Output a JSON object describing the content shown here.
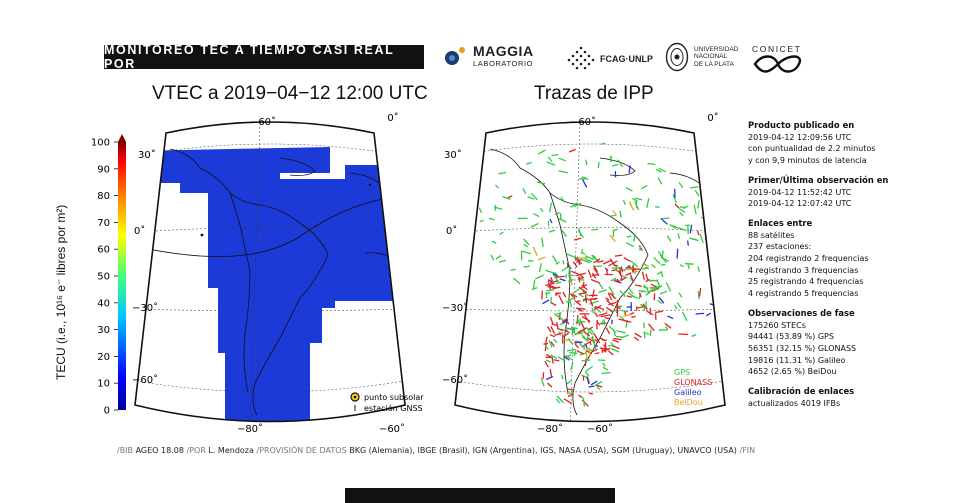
{
  "header": {
    "banner": "MONITOREO TEC A TIEMPO CASI REAL POR",
    "logos": {
      "maggia_line1": "MAGGIA",
      "maggia_line2": "LABORATORIO",
      "fcag": "FCAG·UNLP",
      "unlp_line1": "UNIVERSIDAD",
      "unlp_line2": "NACIONAL",
      "unlp_line3": "DE LA PLATA",
      "conicet": "CONICET"
    }
  },
  "left_map": {
    "title": "VTEC a 2019−04−12 12:00 UTC",
    "lon_ticks_top": [
      "−60˚",
      "0˚"
    ],
    "lon_ticks_bottom": [
      "−80˚",
      "−60˚"
    ],
    "lat_ticks": [
      "30˚",
      "0˚",
      "−30˚",
      "−60˚"
    ],
    "legend": {
      "subsolar": "punto subsolar",
      "station": "estación GNSS"
    },
    "fill_color": "#1c3ad8"
  },
  "colorbar": {
    "ticks": [
      "100",
      "90",
      "80",
      "70",
      "60",
      "50",
      "40",
      "30",
      "20",
      "10",
      "0"
    ],
    "label": "TECU (i.e., 10¹⁶ e⁻ libres por m²)"
  },
  "right_map": {
    "title": "Trazas de IPP",
    "lon_ticks_top": [
      "−60˚",
      "0˚"
    ],
    "lon_ticks_bottom": [
      "−80˚",
      "−60˚"
    ],
    "lat_ticks": [
      "30˚",
      "0˚",
      "−30˚",
      "−60˚"
    ],
    "legend": [
      {
        "label": "GPS",
        "color": "#2ecc40"
      },
      {
        "label": "GLONASS",
        "color": "#e02020"
      },
      {
        "label": "Galileo",
        "color": "#2030e0"
      },
      {
        "label": "BeiDou",
        "color": "#f0a020"
      }
    ]
  },
  "info": {
    "pub_title": "Producto publicado en",
    "pub_1": "2019-04-12 12:09:56 UTC",
    "pub_2": "con puntualidad de 2.2 minutos",
    "pub_3": "y con 9,9 minutos de latencia",
    "obs_title": "Primer/Última observación en",
    "obs_1": "2019-04-12 11:52:42 UTC",
    "obs_2": "2019-04-12 12:07:42 UTC",
    "links_title": "Enlaces entre",
    "links_1": "88 satélites",
    "links_2": "237 estaciones:",
    "links_3": "204 registrando 2 frequencias",
    "links_4": "4 registrando 3 frequencias",
    "links_5": "25 registrando 4 frequencias",
    "links_6": "4 registrando 5 frequencias",
    "phase_title": "Observaciones de fase",
    "phase_1": "175260 STECs",
    "phase_2": "94441 (53.89 %) GPS",
    "phase_3": "56351 (32.15 %) GLONASS",
    "phase_4": "19816 (11.31 %) Galileo",
    "phase_5": "4652 (2.65 %) BeiDou",
    "cal_title": "Calibración de enlaces",
    "cal_1": "actualizados 4019 IFBs"
  },
  "footer": {
    "bib_k": "/BIB ",
    "bib_v": "AGEO 18.08",
    "por_k": " /POR ",
    "por_v": "L. Mendoza",
    "prov_k": " /PROVISIÓN DE DATOS ",
    "prov_v": "BKG (Alemania), IBGE (Brasil), IGN (Argentina), IGS, NASA (USA), SGM (Uruguay), UNAVCO (USA)",
    "fin": " /FIN"
  }
}
